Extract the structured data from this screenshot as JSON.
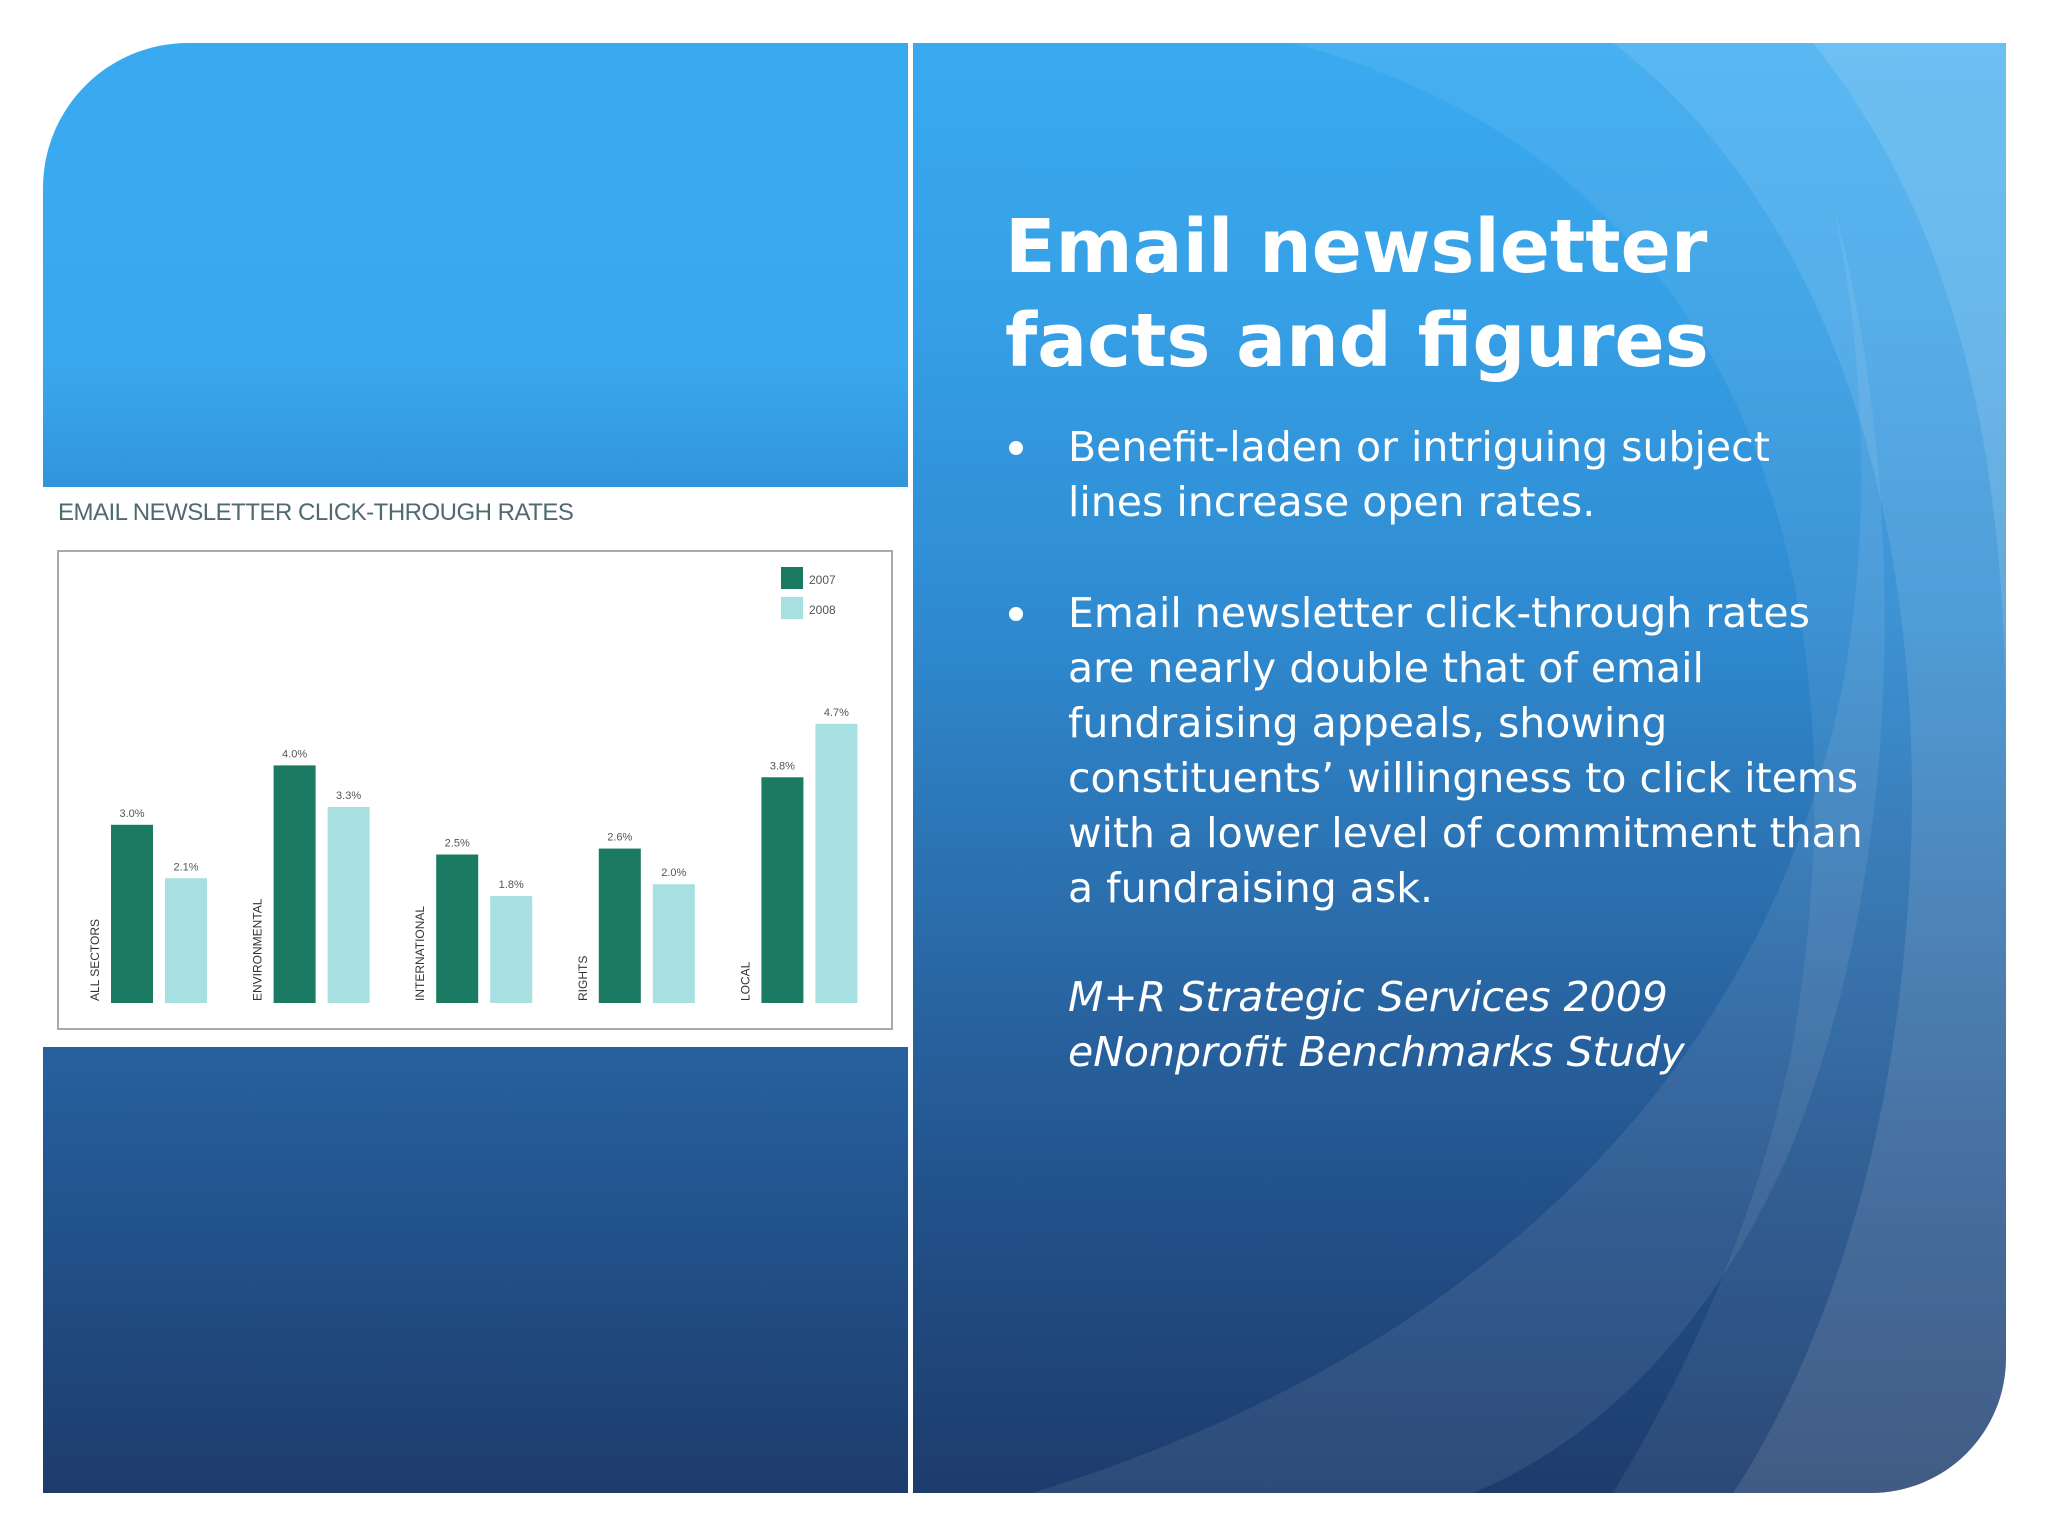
{
  "slide": {
    "title": "Email newsletter facts and figures",
    "bullets": [
      "Benefit-laden or intriguing subject lines increase open rates.",
      "Email newsletter click-through rates are nearly double that of email fundraising appeals, showing constituents’ willingness to click items with a lower level of commitment than a fundraising ask."
    ],
    "source": "M+R Strategic Services 2009 eNonprofit Benchmarks Study"
  },
  "colors": {
    "series_2007": "#1b7a62",
    "series_2008": "#a8dfe0",
    "title_text": "#ffffff",
    "panel_blue": "#3aaaf0",
    "panel_navy": "#1d3c6c"
  },
  "chart_data": {
    "type": "bar",
    "title": "EMAIL NEWSLETTER CLICK-THROUGH RATES",
    "categories": [
      "ALL SECTORS",
      "ENVIRONMENTAL",
      "INTERNATIONAL",
      "RIGHTS",
      "LOCAL"
    ],
    "series": [
      {
        "name": "2007",
        "values": [
          3.0,
          4.0,
          2.5,
          2.6,
          3.8
        ],
        "labels": [
          "3.0%",
          "4.0%",
          "2.5%",
          "2.6%",
          "3.8%"
        ]
      },
      {
        "name": "2008",
        "values": [
          2.1,
          3.3,
          1.8,
          2.0,
          4.7
        ],
        "labels": [
          "2.1%",
          "3.3%",
          "1.8%",
          "2.0%",
          "4.7%"
        ]
      }
    ],
    "ylim": [
      0,
      5
    ],
    "legend": "top-right",
    "grid": false
  }
}
